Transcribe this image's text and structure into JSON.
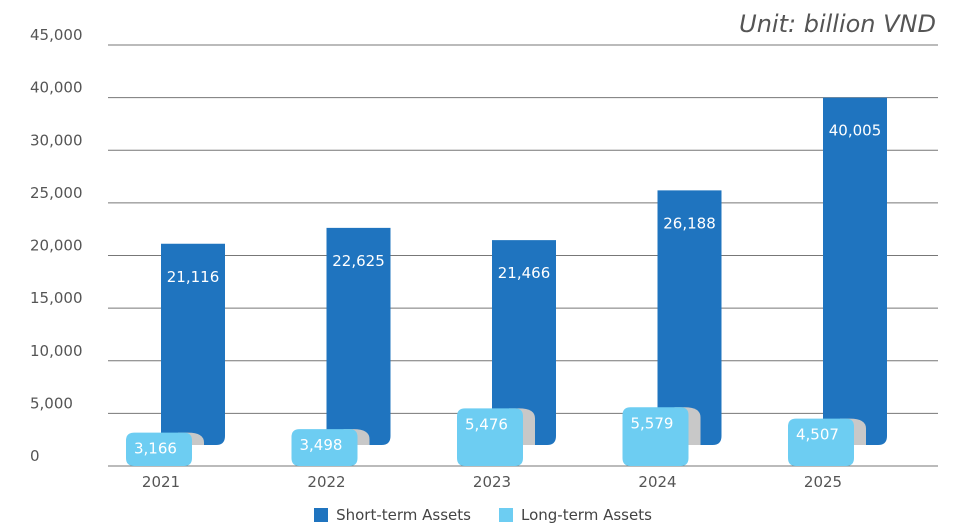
{
  "unit_label": "Unit: billion VND",
  "colors": {
    "short_term": "#1f74bf",
    "long_term": "#6dcdf2",
    "curl": "#c8c8c8",
    "grid": "#777777",
    "axis_text": "#555555"
  },
  "chart_data": {
    "type": "bar",
    "stacked": false,
    "categories": [
      "2021",
      "2022",
      "2023",
      "2024",
      "2025"
    ],
    "series": [
      {
        "name": "Short-term Assets",
        "values": [
          21116,
          22625,
          21466,
          26188,
          40005
        ]
      },
      {
        "name": "Long-term Assets",
        "values": [
          3166,
          3498,
          5476,
          5579,
          4507
        ]
      }
    ],
    "data_labels": {
      "short_term": [
        "21,116",
        "22,625",
        "21,466",
        "26,188",
        "40,005"
      ],
      "long_term": [
        "3,166",
        "3,498",
        "5,476",
        "5,579",
        "4,507"
      ]
    },
    "y_ticks": [
      "0",
      "5,000",
      "10,000",
      "15,000",
      "20,000",
      "25,000",
      "30,000",
      "40,000",
      "45,000"
    ],
    "ylim": [
      0,
      45000
    ],
    "grid": true,
    "legend_position": "bottom"
  }
}
